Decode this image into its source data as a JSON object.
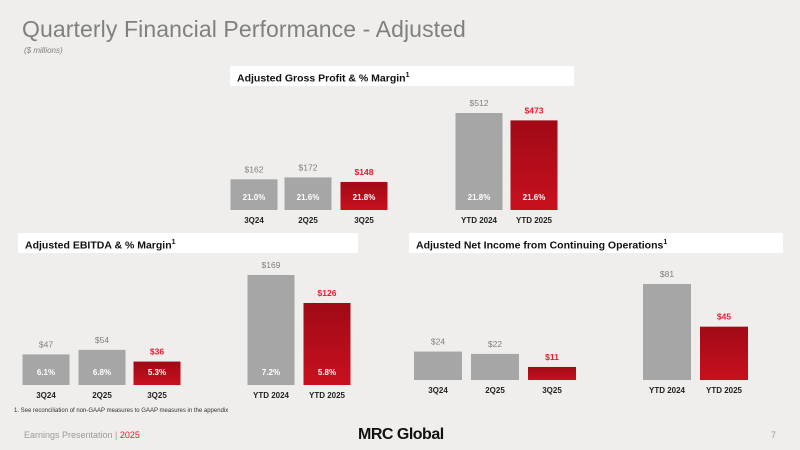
{
  "header": {
    "title": "Quarterly Financial Performance - Adjusted",
    "subtitle": "($ millions)"
  },
  "footnote": "1.   See reconciliation of non-GAAP measures to GAAP measures in the appendix",
  "footer": {
    "label": "Earnings Presentation | ",
    "year": "2025",
    "logo": "MRC Global",
    "page": "7"
  },
  "colors": {
    "gray_bar": "#a6a6a6",
    "red_bar": "#c8101f",
    "red_label": "#e31c2d",
    "gray_label": "#7f7f7f"
  },
  "chart_data": [
    {
      "type": "bar",
      "title": "Adjusted Gross Profit & % Margin",
      "title_sup": "1",
      "categories": [
        "3Q24",
        "2Q25",
        "3Q25",
        "YTD 2024",
        "YTD 2025"
      ],
      "values": [
        162,
        172,
        148,
        512,
        473
      ],
      "value_labels": [
        "$162",
        "$172",
        "$148",
        "$512",
        "$473"
      ],
      "margin_labels": [
        "21.0%",
        "21.6%",
        "21.8%",
        "21.8%",
        "21.6%"
      ],
      "highlight": [
        false,
        false,
        true,
        false,
        true
      ]
    },
    {
      "type": "bar",
      "title": "Adjusted EBITDA & % Margin",
      "title_sup": "1",
      "categories": [
        "3Q24",
        "2Q25",
        "3Q25",
        "YTD 2024",
        "YTD 2025"
      ],
      "values": [
        47,
        54,
        36,
        169,
        126
      ],
      "value_labels": [
        "$47",
        "$54",
        "$36",
        "$169",
        "$126"
      ],
      "margin_labels": [
        "6.1%",
        "6.8%",
        "5.3%",
        "7.2%",
        "5.8%"
      ],
      "highlight": [
        false,
        false,
        true,
        false,
        true
      ]
    },
    {
      "type": "bar",
      "title": "Adjusted Net Income from Continuing Operations",
      "title_sup": "1",
      "categories": [
        "3Q24",
        "2Q25",
        "3Q25",
        "YTD 2024",
        "YTD 2025"
      ],
      "values": [
        24,
        22,
        11,
        81,
        45
      ],
      "value_labels": [
        "$24",
        "$22",
        "$11",
        "$81",
        "$45"
      ],
      "margin_labels": [],
      "highlight": [
        false,
        false,
        true,
        false,
        true
      ]
    }
  ]
}
